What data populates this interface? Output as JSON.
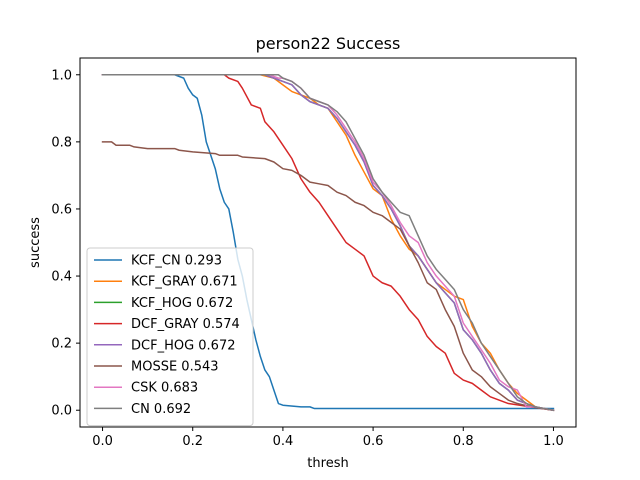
{
  "chart_data": {
    "type": "line",
    "title": "person22 Success",
    "xlabel": "thresh",
    "ylabel": "success",
    "xlim": [
      -0.05,
      1.05
    ],
    "ylim": [
      -0.05,
      1.05
    ],
    "xticks": [
      0.0,
      0.2,
      0.4,
      0.6,
      0.8,
      1.0
    ],
    "xtick_labels": [
      "0.0",
      "0.2",
      "0.4",
      "0.6",
      "0.8",
      "1.0"
    ],
    "yticks": [
      0.0,
      0.2,
      0.4,
      0.6,
      0.8,
      1.0
    ],
    "ytick_labels": [
      "0.0",
      "0.2",
      "0.4",
      "0.6",
      "0.8",
      "1.0"
    ],
    "grid": false,
    "legend_position": "lower-left",
    "series": [
      {
        "name": "KCF_CN 0.293",
        "color": "#1f77b4",
        "points": [
          [
            0,
            1.0
          ],
          [
            0.16,
            1.0
          ],
          [
            0.18,
            0.99
          ],
          [
            0.19,
            0.96
          ],
          [
            0.2,
            0.94
          ],
          [
            0.21,
            0.93
          ],
          [
            0.22,
            0.88
          ],
          [
            0.23,
            0.8
          ],
          [
            0.24,
            0.76
          ],
          [
            0.25,
            0.72
          ],
          [
            0.26,
            0.66
          ],
          [
            0.27,
            0.62
          ],
          [
            0.28,
            0.6
          ],
          [
            0.29,
            0.53
          ],
          [
            0.3,
            0.45
          ],
          [
            0.31,
            0.4
          ],
          [
            0.32,
            0.33
          ],
          [
            0.33,
            0.27
          ],
          [
            0.34,
            0.21
          ],
          [
            0.35,
            0.16
          ],
          [
            0.36,
            0.12
          ],
          [
            0.37,
            0.1
          ],
          [
            0.38,
            0.06
          ],
          [
            0.39,
            0.02
          ],
          [
            0.4,
            0.015
          ],
          [
            0.44,
            0.01
          ],
          [
            0.46,
            0.01
          ],
          [
            0.47,
            0.005
          ],
          [
            1.0,
            0.005
          ]
        ]
      },
      {
        "name": "KCF_GRAY 0.671",
        "color": "#ff7f0e",
        "points": [
          [
            0,
            1.0
          ],
          [
            0.35,
            1.0
          ],
          [
            0.38,
            0.99
          ],
          [
            0.4,
            0.97
          ],
          [
            0.42,
            0.95
          ],
          [
            0.44,
            0.94
          ],
          [
            0.46,
            0.93
          ],
          [
            0.48,
            0.91
          ],
          [
            0.5,
            0.9
          ],
          [
            0.52,
            0.86
          ],
          [
            0.54,
            0.82
          ],
          [
            0.56,
            0.76
          ],
          [
            0.58,
            0.71
          ],
          [
            0.6,
            0.66
          ],
          [
            0.62,
            0.64
          ],
          [
            0.64,
            0.57
          ],
          [
            0.66,
            0.52
          ],
          [
            0.68,
            0.48
          ],
          [
            0.7,
            0.46
          ],
          [
            0.72,
            0.42
          ],
          [
            0.74,
            0.38
          ],
          [
            0.76,
            0.36
          ],
          [
            0.78,
            0.34
          ],
          [
            0.8,
            0.33
          ],
          [
            0.82,
            0.25
          ],
          [
            0.84,
            0.2
          ],
          [
            0.86,
            0.17
          ],
          [
            0.88,
            0.12
          ],
          [
            0.9,
            0.08
          ],
          [
            0.92,
            0.05
          ],
          [
            0.94,
            0.03
          ],
          [
            0.96,
            0.01
          ],
          [
            1.0,
            0.0
          ]
        ]
      },
      {
        "name": "KCF_HOG 0.672",
        "color": "#2ca02c",
        "points": [
          [
            0,
            1.0
          ],
          [
            0.36,
            1.0
          ],
          [
            0.38,
            0.99
          ],
          [
            0.4,
            0.98
          ],
          [
            0.42,
            0.97
          ],
          [
            0.44,
            0.94
          ],
          [
            0.46,
            0.92
          ],
          [
            0.48,
            0.91
          ],
          [
            0.5,
            0.9
          ],
          [
            0.52,
            0.87
          ],
          [
            0.54,
            0.83
          ],
          [
            0.56,
            0.79
          ],
          [
            0.58,
            0.74
          ],
          [
            0.6,
            0.67
          ],
          [
            0.62,
            0.64
          ],
          [
            0.64,
            0.6
          ],
          [
            0.66,
            0.55
          ],
          [
            0.68,
            0.49
          ],
          [
            0.7,
            0.46
          ],
          [
            0.72,
            0.42
          ],
          [
            0.74,
            0.38
          ],
          [
            0.76,
            0.35
          ],
          [
            0.78,
            0.32
          ],
          [
            0.8,
            0.24
          ],
          [
            0.82,
            0.21
          ],
          [
            0.84,
            0.17
          ],
          [
            0.86,
            0.12
          ],
          [
            0.88,
            0.08
          ],
          [
            0.9,
            0.06
          ],
          [
            0.92,
            0.03
          ],
          [
            0.94,
            0.02
          ],
          [
            0.96,
            0.01
          ],
          [
            1.0,
            0.0
          ]
        ]
      },
      {
        "name": "DCF_GRAY 0.574",
        "color": "#d62728",
        "points": [
          [
            0,
            1.0
          ],
          [
            0.27,
            1.0
          ],
          [
            0.28,
            0.99
          ],
          [
            0.3,
            0.98
          ],
          [
            0.31,
            0.96
          ],
          [
            0.33,
            0.91
          ],
          [
            0.35,
            0.9
          ],
          [
            0.36,
            0.86
          ],
          [
            0.38,
            0.83
          ],
          [
            0.4,
            0.79
          ],
          [
            0.42,
            0.75
          ],
          [
            0.44,
            0.69
          ],
          [
            0.46,
            0.65
          ],
          [
            0.48,
            0.62
          ],
          [
            0.5,
            0.58
          ],
          [
            0.52,
            0.54
          ],
          [
            0.54,
            0.5
          ],
          [
            0.56,
            0.48
          ],
          [
            0.58,
            0.46
          ],
          [
            0.6,
            0.4
          ],
          [
            0.62,
            0.38
          ],
          [
            0.64,
            0.37
          ],
          [
            0.66,
            0.34
          ],
          [
            0.68,
            0.3
          ],
          [
            0.7,
            0.27
          ],
          [
            0.72,
            0.22
          ],
          [
            0.74,
            0.19
          ],
          [
            0.76,
            0.17
          ],
          [
            0.78,
            0.11
          ],
          [
            0.8,
            0.09
          ],
          [
            0.82,
            0.08
          ],
          [
            0.84,
            0.06
          ],
          [
            0.86,
            0.04
          ],
          [
            0.88,
            0.03
          ],
          [
            0.9,
            0.02
          ],
          [
            0.95,
            0.01
          ],
          [
            1.0,
            0.0
          ]
        ]
      },
      {
        "name": "DCF_HOG 0.672",
        "color": "#9467bd",
        "points": [
          [
            0,
            1.0
          ],
          [
            0.36,
            1.0
          ],
          [
            0.38,
            0.99
          ],
          [
            0.4,
            0.98
          ],
          [
            0.42,
            0.97
          ],
          [
            0.44,
            0.94
          ],
          [
            0.46,
            0.92
          ],
          [
            0.48,
            0.91
          ],
          [
            0.5,
            0.9
          ],
          [
            0.52,
            0.87
          ],
          [
            0.54,
            0.83
          ],
          [
            0.56,
            0.79
          ],
          [
            0.58,
            0.74
          ],
          [
            0.6,
            0.67
          ],
          [
            0.62,
            0.64
          ],
          [
            0.64,
            0.6
          ],
          [
            0.66,
            0.55
          ],
          [
            0.68,
            0.49
          ],
          [
            0.7,
            0.46
          ],
          [
            0.72,
            0.42
          ],
          [
            0.74,
            0.38
          ],
          [
            0.76,
            0.35
          ],
          [
            0.78,
            0.32
          ],
          [
            0.8,
            0.24
          ],
          [
            0.82,
            0.21
          ],
          [
            0.84,
            0.17
          ],
          [
            0.86,
            0.12
          ],
          [
            0.88,
            0.08
          ],
          [
            0.9,
            0.06
          ],
          [
            0.92,
            0.03
          ],
          [
            0.94,
            0.02
          ],
          [
            0.96,
            0.01
          ],
          [
            1.0,
            0.0
          ]
        ]
      },
      {
        "name": "MOSSE 0.543",
        "color": "#8c564b",
        "points": [
          [
            0,
            0.8
          ],
          [
            0.02,
            0.8
          ],
          [
            0.03,
            0.79
          ],
          [
            0.06,
            0.79
          ],
          [
            0.07,
            0.785
          ],
          [
            0.1,
            0.78
          ],
          [
            0.16,
            0.78
          ],
          [
            0.17,
            0.775
          ],
          [
            0.2,
            0.77
          ],
          [
            0.25,
            0.765
          ],
          [
            0.26,
            0.76
          ],
          [
            0.3,
            0.76
          ],
          [
            0.31,
            0.755
          ],
          [
            0.36,
            0.75
          ],
          [
            0.38,
            0.74
          ],
          [
            0.4,
            0.72
          ],
          [
            0.42,
            0.715
          ],
          [
            0.44,
            0.7
          ],
          [
            0.46,
            0.68
          ],
          [
            0.48,
            0.675
          ],
          [
            0.5,
            0.67
          ],
          [
            0.52,
            0.65
          ],
          [
            0.54,
            0.64
          ],
          [
            0.56,
            0.62
          ],
          [
            0.58,
            0.61
          ],
          [
            0.6,
            0.59
          ],
          [
            0.62,
            0.58
          ],
          [
            0.64,
            0.56
          ],
          [
            0.66,
            0.54
          ],
          [
            0.68,
            0.49
          ],
          [
            0.7,
            0.44
          ],
          [
            0.72,
            0.38
          ],
          [
            0.74,
            0.36
          ],
          [
            0.76,
            0.3
          ],
          [
            0.78,
            0.25
          ],
          [
            0.8,
            0.17
          ],
          [
            0.82,
            0.12
          ],
          [
            0.84,
            0.1
          ],
          [
            0.86,
            0.07
          ],
          [
            0.88,
            0.05
          ],
          [
            0.9,
            0.03
          ],
          [
            0.92,
            0.02
          ],
          [
            0.95,
            0.01
          ],
          [
            1.0,
            0.0
          ]
        ]
      },
      {
        "name": "CSK 0.683",
        "color": "#e377c2",
        "points": [
          [
            0,
            1.0
          ],
          [
            0.37,
            1.0
          ],
          [
            0.39,
            0.99
          ],
          [
            0.4,
            0.99
          ],
          [
            0.42,
            0.98
          ],
          [
            0.44,
            0.96
          ],
          [
            0.46,
            0.93
          ],
          [
            0.48,
            0.92
          ],
          [
            0.5,
            0.91
          ],
          [
            0.52,
            0.88
          ],
          [
            0.54,
            0.84
          ],
          [
            0.56,
            0.8
          ],
          [
            0.58,
            0.75
          ],
          [
            0.6,
            0.68
          ],
          [
            0.62,
            0.65
          ],
          [
            0.64,
            0.61
          ],
          [
            0.66,
            0.56
          ],
          [
            0.68,
            0.52
          ],
          [
            0.7,
            0.5
          ],
          [
            0.72,
            0.44
          ],
          [
            0.74,
            0.4
          ],
          [
            0.76,
            0.37
          ],
          [
            0.78,
            0.34
          ],
          [
            0.8,
            0.26
          ],
          [
            0.82,
            0.22
          ],
          [
            0.84,
            0.18
          ],
          [
            0.86,
            0.14
          ],
          [
            0.88,
            0.09
          ],
          [
            0.9,
            0.07
          ],
          [
            0.92,
            0.06
          ],
          [
            0.94,
            0.01
          ],
          [
            0.96,
            0.01
          ],
          [
            1.0,
            0.0
          ]
        ]
      },
      {
        "name": "CN 0.692",
        "color": "#7f7f7f",
        "points": [
          [
            0,
            1.0
          ],
          [
            0.39,
            1.0
          ],
          [
            0.4,
            0.99
          ],
          [
            0.42,
            0.98
          ],
          [
            0.44,
            0.96
          ],
          [
            0.46,
            0.93
          ],
          [
            0.48,
            0.92
          ],
          [
            0.5,
            0.91
          ],
          [
            0.52,
            0.89
          ],
          [
            0.54,
            0.86
          ],
          [
            0.56,
            0.81
          ],
          [
            0.58,
            0.76
          ],
          [
            0.6,
            0.69
          ],
          [
            0.62,
            0.65
          ],
          [
            0.64,
            0.62
          ],
          [
            0.66,
            0.59
          ],
          [
            0.68,
            0.58
          ],
          [
            0.7,
            0.52
          ],
          [
            0.72,
            0.46
          ],
          [
            0.74,
            0.42
          ],
          [
            0.76,
            0.39
          ],
          [
            0.78,
            0.36
          ],
          [
            0.8,
            0.3
          ],
          [
            0.82,
            0.26
          ],
          [
            0.84,
            0.2
          ],
          [
            0.86,
            0.16
          ],
          [
            0.88,
            0.12
          ],
          [
            0.9,
            0.08
          ],
          [
            0.92,
            0.04
          ],
          [
            0.94,
            0.02
          ],
          [
            0.96,
            0.01
          ],
          [
            1.0,
            0.0
          ]
        ]
      }
    ]
  }
}
